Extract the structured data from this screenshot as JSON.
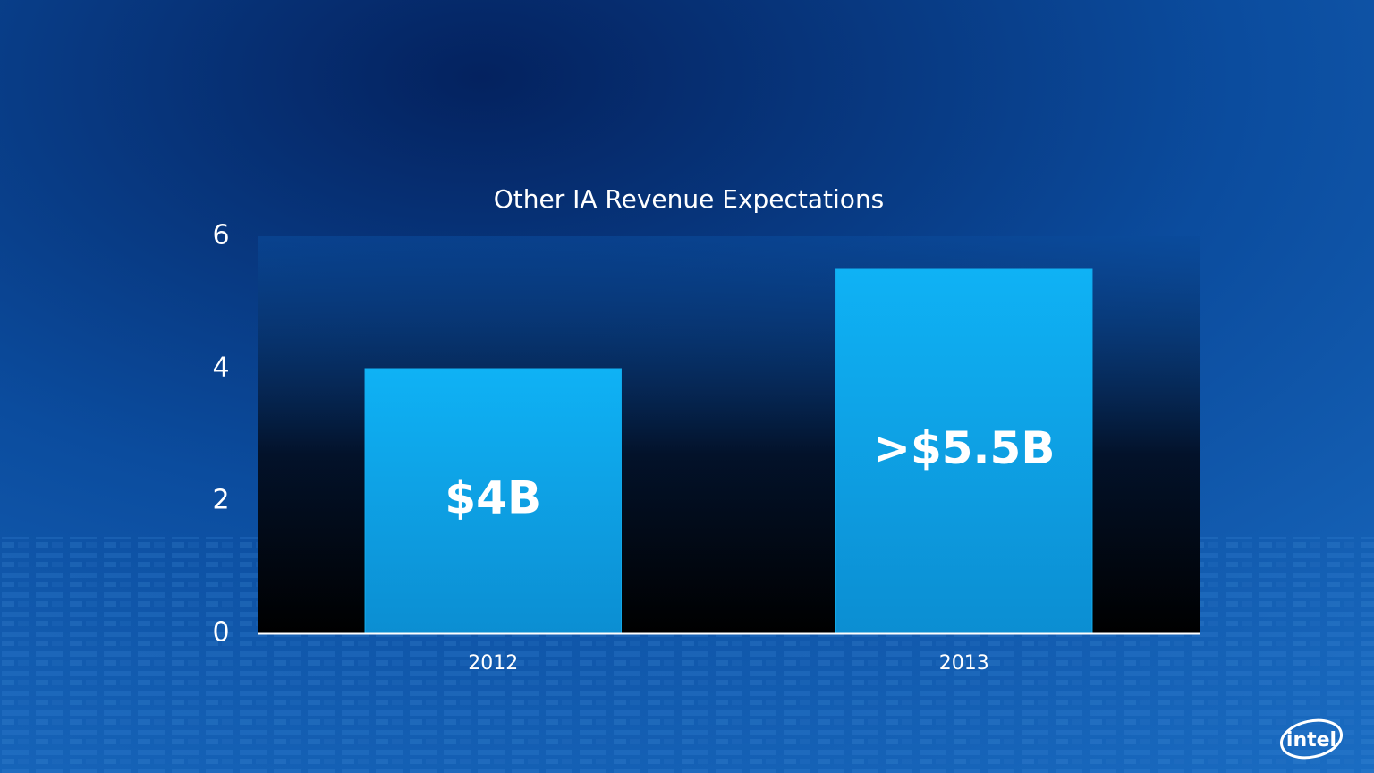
{
  "chart_data": {
    "type": "bar",
    "title": "Other IA Revenue Expectations",
    "categories": [
      "2012",
      "2013"
    ],
    "values": [
      4,
      5.5
    ],
    "value_labels": [
      "$4B",
      ">$5.5B"
    ],
    "color": "#12aef0",
    "ylim": [
      0,
      6
    ],
    "yticks": [
      0,
      2,
      4,
      6
    ]
  },
  "logo": "intel"
}
